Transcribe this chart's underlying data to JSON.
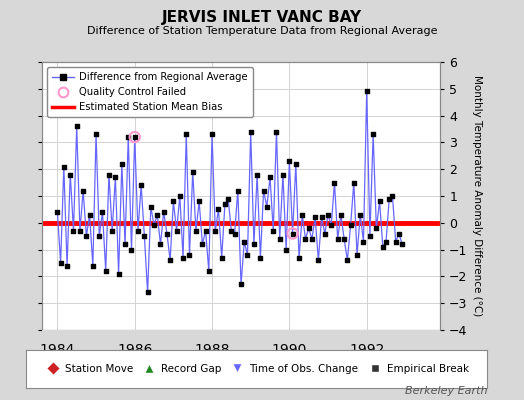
{
  "title": "JERVIS INLET VANC BAY",
  "subtitle": "Difference of Station Temperature Data from Regional Average",
  "ylabel": "Monthly Temperature Anomaly Difference (°C)",
  "xlabel_ticks": [
    1984,
    1986,
    1988,
    1990,
    1992
  ],
  "ylim": [
    -4,
    6
  ],
  "yticks": [
    -4,
    -3,
    -2,
    -1,
    0,
    1,
    2,
    3,
    4,
    5,
    6
  ],
  "bias_value": 0.0,
  "background_color": "#d8d8d8",
  "plot_bg_color": "#ffffff",
  "line_color": "#6666ff",
  "bias_color": "#ff0000",
  "marker_color": "#000000",
  "qc_fail_color": "#ff99cc",
  "watermark": "Berkeley Earth",
  "time_series": [
    0.4,
    -1.5,
    2.1,
    -1.6,
    1.8,
    -0.3,
    3.6,
    -0.3,
    1.2,
    -0.5,
    0.3,
    -1.6,
    3.3,
    -0.5,
    0.4,
    -1.8,
    1.8,
    -0.3,
    1.7,
    -1.9,
    2.2,
    -0.8,
    3.2,
    -1.0,
    3.2,
    -0.3,
    1.4,
    -0.5,
    -2.6,
    0.6,
    -0.1,
    0.3,
    -0.8,
    0.4,
    -0.4,
    -1.4,
    0.8,
    -0.3,
    1.0,
    -1.3,
    3.3,
    -1.2,
    1.9,
    -0.3,
    0.8,
    -0.8,
    -0.3,
    -1.8,
    3.3,
    -0.3,
    0.5,
    -1.3,
    0.7,
    0.9,
    -0.3,
    -0.4,
    1.2,
    -2.3,
    -0.7,
    -1.2,
    3.4,
    -0.8,
    1.8,
    -1.3,
    1.2,
    0.6,
    1.7,
    -0.3,
    3.4,
    -0.6,
    1.8,
    -1.0,
    2.3,
    -0.4,
    2.2,
    -1.3,
    0.3,
    -0.6,
    -0.2,
    -0.6,
    0.2,
    -1.4,
    0.2,
    -0.4,
    0.3,
    -0.1,
    1.5,
    -0.6,
    0.3,
    -0.6,
    -1.4,
    -0.1,
    1.5,
    -1.2,
    0.3,
    -0.7,
    4.9,
    -0.5,
    3.3,
    -0.2,
    0.8,
    -0.9,
    -0.7,
    0.9,
    1.0,
    -0.7,
    -0.4,
    -0.8
  ],
  "start_year": 1984.0,
  "qc_fail_indices": [
    24,
    73
  ],
  "time_of_obs_indices": []
}
